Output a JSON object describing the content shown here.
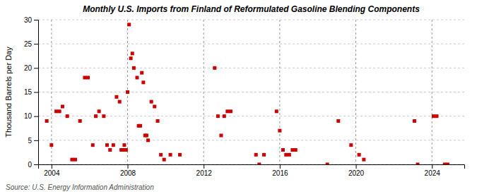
{
  "chart_data": {
    "type": "scatter",
    "title": "Monthly U.S. Imports from Finland of Reformulated Gasoline Blending Components",
    "ylabel": "Thousand Barrels per Day",
    "source": "Source: U.S. Energy Information Administration",
    "color": "#cc0000",
    "marker": "square",
    "grid": true,
    "xlim": [
      2003.3,
      2025.7
    ],
    "xticks": [
      2004,
      2008,
      2012,
      2016,
      2020,
      2024
    ],
    "ylim": [
      0,
      30
    ],
    "yticks": [
      0,
      5,
      10,
      15,
      20,
      25,
      30
    ],
    "x": [
      2003.75,
      2004.0,
      2004.25,
      2004.42,
      2004.58,
      2004.83,
      2005.08,
      2005.25,
      2005.5,
      2005.75,
      2005.92,
      2006.17,
      2006.33,
      2006.5,
      2006.75,
      2006.92,
      2007.08,
      2007.25,
      2007.42,
      2007.58,
      2007.67,
      2007.75,
      2007.83,
      2007.92,
      2008.0,
      2008.08,
      2008.17,
      2008.25,
      2008.33,
      2008.5,
      2008.58,
      2008.67,
      2008.75,
      2008.83,
      2008.92,
      2009.0,
      2009.08,
      2009.25,
      2009.42,
      2009.58,
      2009.75,
      2009.92,
      2010.25,
      2010.75,
      2012.58,
      2012.75,
      2012.92,
      2013.08,
      2013.25,
      2013.42,
      2014.75,
      2014.92,
      2015.17,
      2015.83,
      2016.0,
      2016.17,
      2016.33,
      2016.5,
      2016.67,
      2016.83,
      2018.5,
      2019.08,
      2019.75,
      2020.17,
      2020.42,
      2023.08,
      2023.25,
      2024.08,
      2024.25,
      2024.67,
      2024.83
    ],
    "values": [
      9,
      4,
      11,
      11,
      12,
      10,
      1,
      1,
      9,
      18,
      18,
      4,
      10,
      11,
      10,
      4,
      3,
      4,
      14,
      13,
      3,
      3,
      4,
      3,
      15,
      29,
      22,
      23,
      20,
      18,
      8,
      8,
      19,
      17,
      6,
      6,
      5,
      13,
      12,
      9,
      2,
      1,
      2,
      2,
      20,
      10,
      6,
      10,
      11,
      11,
      2,
      0,
      2,
      11,
      7,
      3,
      2,
      2,
      3,
      3,
      0,
      9,
      4,
      2,
      1,
      9,
      0,
      10,
      10,
      0,
      0
    ]
  }
}
